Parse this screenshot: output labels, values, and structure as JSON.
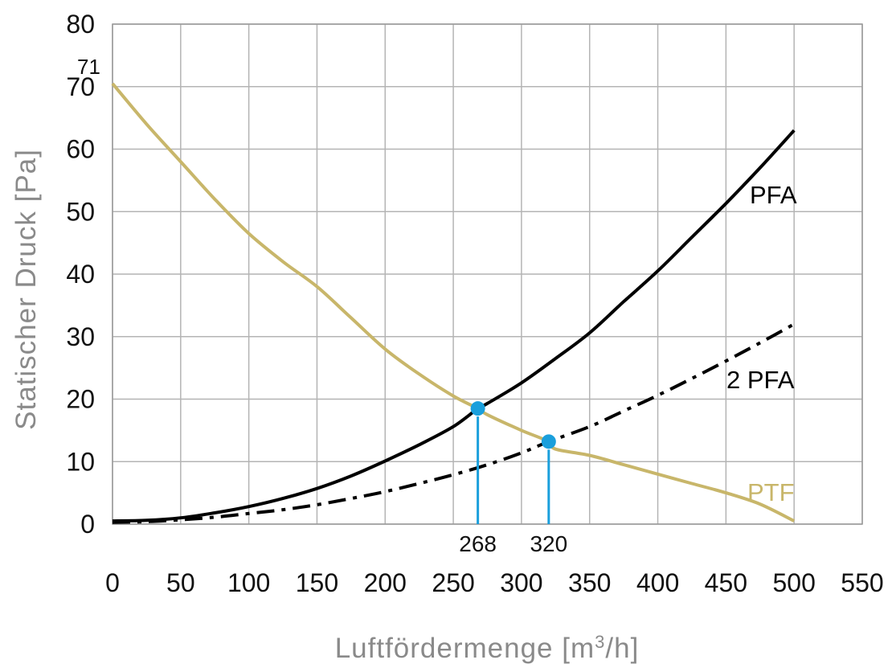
{
  "colors": {
    "background": "#ffffff",
    "plot_border": "#999999",
    "grid": "#b4b4b4",
    "pfa": "#000000",
    "pfa2": "#000000",
    "ptf": "#c8b66a",
    "marker": "#1a9fdc",
    "axis_title": "#8a8a8a",
    "tick_text": "#111111"
  },
  "chart_data": {
    "type": "line",
    "xlabel_main": "Luftfördermenge [m",
    "xlabel_sup": "3",
    "xlabel_end": "/h]",
    "ylabel": "Statischer Druck [Pa]",
    "xlim": [
      0,
      550
    ],
    "ylim": [
      0,
      80
    ],
    "x_ticks": [
      "0",
      "50",
      "100",
      "150",
      "200",
      "250",
      "300",
      "350",
      "400",
      "450",
      "500",
      "550"
    ],
    "y_ticks": [
      "0",
      "10",
      "20",
      "30",
      "40",
      "50",
      "60",
      "70",
      "80"
    ],
    "grid": true,
    "series": [
      {
        "name": "PFA",
        "style": "solid",
        "x": [
          0,
          25,
          50,
          75,
          100,
          125,
          150,
          175,
          200,
          225,
          250,
          268,
          275,
          300,
          325,
          350,
          375,
          400,
          425,
          450,
          475,
          500
        ],
        "y": [
          0.5,
          0.6,
          1.0,
          1.8,
          2.8,
          4.1,
          5.7,
          7.7,
          10.1,
          12.7,
          15.6,
          18.5,
          19.3,
          22.6,
          26.5,
          30.6,
          35.6,
          40.5,
          45.9,
          51.3,
          57.0,
          63.0
        ]
      },
      {
        "name": "2 PFA",
        "style": "dashdot",
        "x": [
          0,
          25,
          50,
          75,
          100,
          125,
          150,
          175,
          200,
          225,
          250,
          275,
          300,
          320,
          350,
          375,
          400,
          425,
          450,
          475,
          500
        ],
        "y": [
          0.3,
          0.4,
          0.7,
          1.1,
          1.7,
          2.3,
          3.1,
          4.1,
          5.2,
          6.5,
          7.9,
          9.5,
          11.4,
          13.2,
          15.6,
          18.1,
          20.6,
          23.3,
          26.1,
          29.0,
          32.0
        ]
      },
      {
        "name": "PTF",
        "style": "solid",
        "x": [
          0,
          25,
          50,
          75,
          100,
          125,
          150,
          175,
          200,
          225,
          250,
          268,
          275,
          300,
          320,
          325,
          350,
          375,
          400,
          425,
          450,
          475,
          500
        ],
        "y": [
          70.5,
          64.0,
          58.0,
          52.0,
          46.5,
          42.0,
          38.0,
          33.0,
          28.0,
          24.0,
          20.5,
          18.5,
          17.5,
          15.0,
          13.2,
          12.0,
          11.0,
          9.5,
          8.0,
          6.5,
          5.0,
          3.2,
          0.5
        ]
      }
    ],
    "operating_points": [
      {
        "label": "268",
        "x": 268,
        "y": 18.5
      },
      {
        "label": "320",
        "x": 320,
        "y": 13.2
      }
    ],
    "annotations": [
      {
        "text": "71",
        "y": 71
      }
    ]
  }
}
